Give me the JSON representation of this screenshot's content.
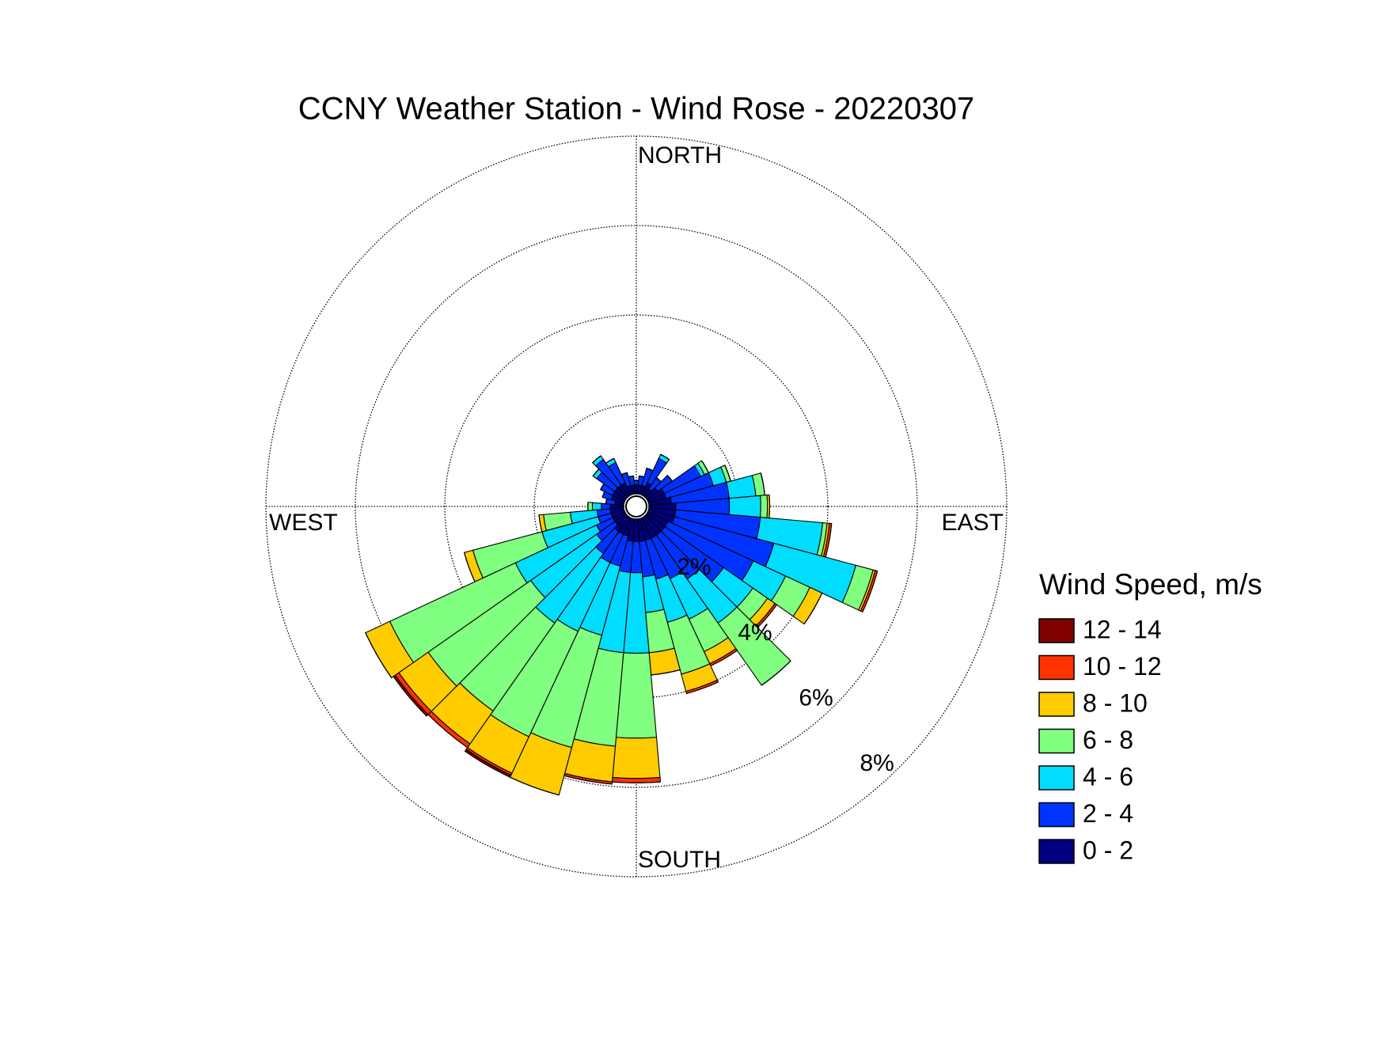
{
  "chart_data": {
    "type": "windrose",
    "title": "CCNY Weather Station - Wind Rose - 20220307",
    "direction_labels": {
      "north": "NORTH",
      "east": "EAST",
      "south": "SOUTH",
      "west": "WEST"
    },
    "legend_title": "Wind Speed, m/s",
    "x": [
      0,
      10,
      20,
      30,
      40,
      50,
      60,
      70,
      80,
      90,
      100,
      110,
      120,
      130,
      140,
      150,
      160,
      170,
      180,
      190,
      200,
      210,
      220,
      230,
      240,
      250,
      260,
      270,
      280,
      290,
      300,
      310,
      320,
      330,
      340,
      350
    ],
    "rlim": [
      0,
      8
    ],
    "rticks": [
      {
        "value": 2,
        "label": "2%"
      },
      {
        "value": 4,
        "label": "4%"
      },
      {
        "value": 6,
        "label": "6%"
      },
      {
        "value": 8,
        "label": "8%"
      }
    ],
    "series": [
      {
        "name": "0 - 2",
        "color": "#000080",
        "values": [
          0.2,
          0.2,
          0.2,
          0.3,
          0.2,
          0.3,
          0.4,
          0.4,
          0.5,
          0.6,
          0.6,
          0.6,
          0.5,
          0.5,
          0.5,
          0.5,
          0.5,
          0.5,
          0.5,
          0.5,
          0.4,
          0.4,
          0.4,
          0.3,
          0.3,
          0.3,
          0.3,
          0.3,
          0.2,
          0.3,
          0.3,
          0.3,
          0.3,
          0.3,
          0.2,
          0.2
        ]
      },
      {
        "name": "2 - 4",
        "color": "#0033ff",
        "values": [
          0.1,
          0.2,
          0.4,
          0.6,
          0.3,
          0.4,
          0.9,
          1.1,
          1.3,
          1.2,
          1.9,
          2.3,
          2.1,
          1.6,
          1.2,
          1.0,
          0.9,
          0.8,
          0.7,
          0.7,
          0.7,
          0.7,
          0.6,
          0.5,
          0.4,
          0.3,
          0.3,
          0.2,
          0.2,
          0.2,
          0.3,
          0.5,
          0.7,
          0.5,
          0.3,
          0.2
        ]
      },
      {
        "name": "4 - 6",
        "color": "#00ddff",
        "values": [
          0,
          0,
          0,
          0.1,
          0,
          0,
          0.1,
          0.3,
          0.6,
          0.7,
          1.4,
          1.9,
          0.8,
          0.8,
          1.2,
          1.0,
          1.0,
          0.8,
          1.8,
          1.8,
          1.6,
          1.7,
          1.9,
          1.8,
          2.0,
          1.3,
          0.6,
          0.2,
          0,
          0,
          0,
          0.1,
          0.1,
          0.1,
          0,
          0
        ]
      },
      {
        "name": "6 - 8",
        "color": "#80ff80",
        "values": [
          0,
          0,
          0,
          0,
          0,
          0,
          0.1,
          0.1,
          0.2,
          0.15,
          0.1,
          0.4,
          0.6,
          0.4,
          1.7,
          0.8,
          1.2,
          0.9,
          1.9,
          2.1,
          2.6,
          2.6,
          2.4,
          2.8,
          3.1,
          1.6,
          0.6,
          0.1,
          0,
          0,
          0,
          0,
          0,
          0,
          0,
          0
        ]
      },
      {
        "name": "8 - 10",
        "color": "#ffcc00",
        "values": [
          0,
          0,
          0,
          0,
          0,
          0,
          0,
          0,
          0,
          0.05,
          0.05,
          0.05,
          0.3,
          0.2,
          0,
          0.3,
          0.4,
          0.5,
          0.9,
          0.8,
          1.1,
          0.9,
          0.9,
          0.8,
          0.6,
          0.2,
          0.1,
          0,
          0,
          0,
          0,
          0,
          0,
          0,
          0,
          0
        ]
      },
      {
        "name": "10 - 12",
        "color": "#ff3300",
        "values": [
          0,
          0,
          0,
          0,
          0,
          0,
          0,
          0,
          0,
          0,
          0.05,
          0.05,
          0,
          0.05,
          0,
          0.05,
          0.05,
          0,
          0.1,
          0.05,
          0,
          0.05,
          0.1,
          0.1,
          0,
          0,
          0,
          0,
          0,
          0,
          0,
          0,
          0,
          0,
          0,
          0
        ]
      },
      {
        "name": "12 - 14",
        "color": "#800000",
        "values": [
          0,
          0,
          0,
          0,
          0,
          0,
          0,
          0,
          0,
          0,
          0,
          0,
          0,
          0,
          0,
          0,
          0,
          0,
          0,
          0,
          0,
          0.05,
          0,
          0.05,
          0,
          0,
          0,
          0,
          0,
          0,
          0,
          0,
          0,
          0,
          0,
          0
        ]
      }
    ]
  }
}
